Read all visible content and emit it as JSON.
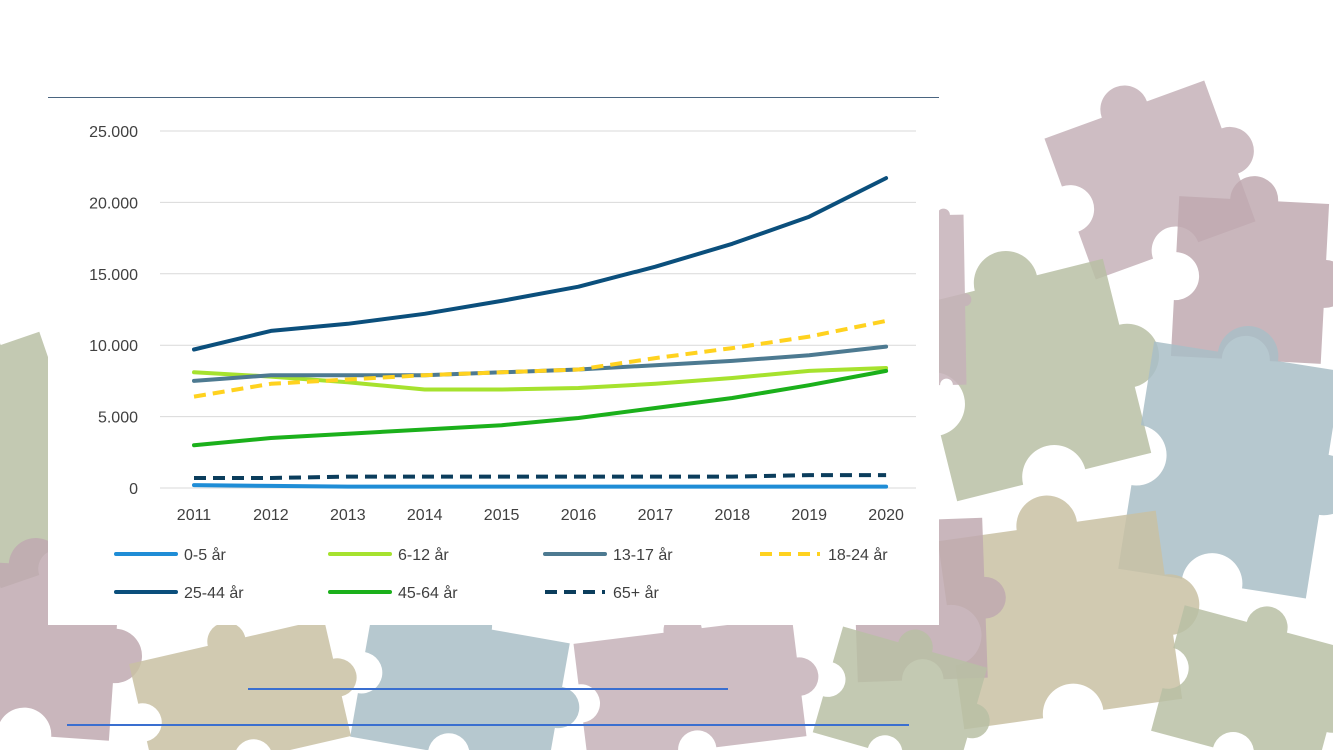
{
  "chart_data": {
    "type": "line",
    "title": "",
    "xlabel": "",
    "ylabel": "",
    "categories": [
      "2011",
      "2012",
      "2013",
      "2014",
      "2015",
      "2016",
      "2017",
      "2018",
      "2019",
      "2020"
    ],
    "ylim": [
      0,
      25000
    ],
    "yticks": [
      0,
      5000,
      10000,
      15000,
      20000,
      25000
    ],
    "ytick_labels": [
      "0",
      "5.000",
      "10.000",
      "15.000",
      "20.000",
      "25.000"
    ],
    "grid": true,
    "legend_position": "bottom",
    "series": [
      {
        "name": "0-5 år",
        "color": "#1f8dd6",
        "dashed": false,
        "values": [
          200,
          150,
          100,
          100,
          100,
          100,
          100,
          100,
          100,
          100
        ]
      },
      {
        "name": "6-12 år",
        "color": "#a6e22e",
        "dashed": false,
        "values": [
          8100,
          7800,
          7400,
          6900,
          6900,
          7000,
          7300,
          7700,
          8200,
          8400
        ]
      },
      {
        "name": "13-17 år",
        "color": "#4d7a91",
        "dashed": false,
        "values": [
          7500,
          7900,
          7900,
          7900,
          8100,
          8300,
          8600,
          8900,
          9300,
          9900
        ]
      },
      {
        "name": "18-24 år",
        "color": "#ffd21f",
        "dashed": true,
        "values": [
          6400,
          7300,
          7600,
          7900,
          8100,
          8300,
          9100,
          9800,
          10600,
          11700
        ]
      },
      {
        "name": "25-44 år",
        "color": "#0b4f7c",
        "dashed": false,
        "values": [
          9700,
          11000,
          11500,
          12200,
          13100,
          14100,
          15500,
          17100,
          19000,
          21700
        ]
      },
      {
        "name": "45-64 år",
        "color": "#1bb01b",
        "dashed": false,
        "values": [
          3000,
          3500,
          3800,
          4100,
          4400,
          4900,
          5600,
          6300,
          7200,
          8200
        ]
      },
      {
        "name": "65+ år",
        "color": "#0b3d5c",
        "dashed": true,
        "values": [
          700,
          700,
          800,
          800,
          800,
          800,
          800,
          800,
          900,
          900
        ]
      }
    ]
  },
  "background": {
    "colors": [
      "#c6b1b8",
      "#b9c0a4",
      "#a9bec7",
      "#c9c1a3",
      "#bfa9b0"
    ]
  }
}
